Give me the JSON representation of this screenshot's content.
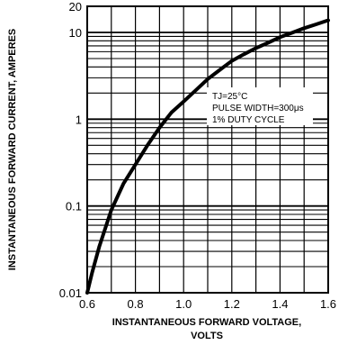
{
  "chart_data": {
    "type": "line",
    "xlabel_line1": "INSTANTANEOUS FORWARD VOLTAGE,",
    "xlabel_line2": "VOLTS",
    "ylabel": "INSTANTANEOUS FORWARD CURRENT, AMPERES",
    "xlim": [
      0.6,
      1.6
    ],
    "ylim": [
      0.01,
      20
    ],
    "yscale": "log",
    "grid": true,
    "x_ticks": [
      0.6,
      0.8,
      1.0,
      1.2,
      1.4,
      1.6
    ],
    "x_tick_labels": [
      "0.6",
      "0.8",
      "1.0",
      "1.2",
      "1.4",
      "1.6"
    ],
    "y_ticks": [
      0.01,
      0.1,
      1,
      10,
      20
    ],
    "y_tick_labels": [
      "0.01",
      "0.1",
      "1",
      "10",
      "20"
    ],
    "annotation": [
      "TJ=25°C",
      "PULSE WIDTH=300μs",
      "1% DUTY CYCLE"
    ],
    "series": [
      {
        "x": [
          0.6,
          0.62,
          0.65,
          0.7,
          0.75,
          0.8,
          0.85,
          0.9,
          0.95,
          1.0,
          1.05,
          1.1,
          1.15,
          1.2,
          1.25,
          1.3,
          1.35,
          1.4,
          1.45,
          1.5,
          1.55,
          1.6
        ],
        "y": [
          0.01,
          0.017,
          0.034,
          0.09,
          0.18,
          0.3,
          0.5,
          0.8,
          1.2,
          1.6,
          2.15,
          2.9,
          3.7,
          4.7,
          5.6,
          6.6,
          7.6,
          8.8,
          9.9,
          11.2,
          12.4,
          13.8
        ]
      }
    ]
  }
}
